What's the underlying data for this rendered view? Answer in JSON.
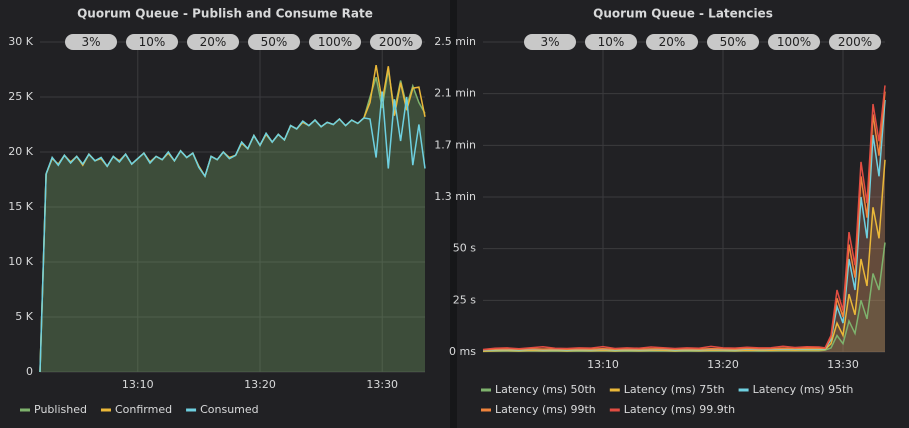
{
  "chart_data": [
    {
      "type": "line",
      "title": "Quorum Queue - Publish and Consume Rate",
      "annotations": [
        "3%",
        "10%",
        "20%",
        "50%",
        "100%",
        "200%"
      ],
      "x": [
        2,
        2.5,
        3,
        3.5,
        4,
        4.5,
        5,
        5.5,
        6,
        6.5,
        7,
        7.5,
        8,
        8.5,
        9,
        9.5,
        10,
        10.5,
        11,
        11.5,
        12,
        12.5,
        13,
        13.5,
        14,
        14.5,
        15,
        15.5,
        16,
        16.5,
        17,
        17.5,
        18,
        18.5,
        19,
        19.5,
        20,
        20.5,
        21,
        21.5,
        22,
        22.5,
        23,
        23.5,
        24,
        24.5,
        25,
        25.5,
        26,
        26.5,
        27,
        27.5,
        28,
        28.5,
        29,
        29.5,
        30,
        30.5,
        31,
        31.5,
        32,
        32.5,
        33,
        33.5
      ],
      "xlim": [
        2,
        33.5
      ],
      "xticks": [
        {
          "value": 10,
          "label": "13:10"
        },
        {
          "value": 20,
          "label": "13:20"
        },
        {
          "value": 30,
          "label": "13:30"
        }
      ],
      "ylim": [
        0,
        30000
      ],
      "yticks": [
        0,
        {
          "value": 5000,
          "label": "5 K"
        },
        {
          "value": 10000,
          "label": "10 K"
        },
        {
          "value": 15000,
          "label": "15 K"
        },
        {
          "value": 20000,
          "label": "20 K"
        },
        {
          "value": 25000,
          "label": "25 K"
        },
        {
          "value": 30000,
          "label": "30 K"
        }
      ],
      "grid": true,
      "series": [
        {
          "name": "Published",
          "color": "#7eb26d",
          "fill": true,
          "values": [
            0,
            18000,
            19500,
            18800,
            19700,
            19000,
            19600,
            18900,
            19800,
            19200,
            19500,
            18700,
            19600,
            19100,
            19800,
            18900,
            19400,
            19900,
            19000,
            19600,
            19300,
            20000,
            19200,
            20100,
            19500,
            19900,
            18600,
            17800,
            19600,
            19300,
            20000,
            19400,
            19700,
            20900,
            20300,
            21500,
            20600,
            21700,
            20900,
            21600,
            21100,
            22400,
            22100,
            22800,
            22400,
            22900,
            22300,
            22700,
            22500,
            23000,
            22400,
            22900,
            22600,
            23100,
            25000,
            26800,
            24000,
            27500,
            23800,
            26500,
            24200,
            26000,
            24500,
            23500
          ]
        },
        {
          "name": "Confirmed",
          "color": "#eab839",
          "fill": false,
          "values": [
            0,
            18000,
            19400,
            18900,
            19700,
            19100,
            19600,
            18800,
            19800,
            19200,
            19400,
            18700,
            19600,
            19200,
            19800,
            18900,
            19400,
            19900,
            19100,
            19600,
            19300,
            19900,
            19200,
            20100,
            19500,
            19900,
            18700,
            17800,
            19600,
            19300,
            20000,
            19500,
            19700,
            20800,
            20300,
            21500,
            20600,
            21600,
            20900,
            21600,
            21100,
            22400,
            22100,
            22700,
            22400,
            22900,
            22300,
            22700,
            22500,
            23000,
            22400,
            22900,
            22600,
            23100,
            24500,
            27900,
            24600,
            27800,
            23300,
            26300,
            23800,
            25800,
            25900,
            23200
          ]
        },
        {
          "name": "Consumed",
          "color": "#6ed0e0",
          "fill": false,
          "values": [
            0,
            18000,
            19500,
            18800,
            19700,
            19000,
            19600,
            18900,
            19800,
            19200,
            19500,
            18700,
            19600,
            19100,
            19800,
            18900,
            19400,
            19900,
            19000,
            19600,
            19300,
            20000,
            19200,
            20100,
            19500,
            19900,
            18600,
            17800,
            19600,
            19300,
            20000,
            19400,
            19700,
            20900,
            20300,
            21500,
            20600,
            21700,
            20900,
            21600,
            21100,
            22400,
            22100,
            22800,
            22400,
            22900,
            22300,
            22700,
            22500,
            23000,
            22400,
            22900,
            22600,
            23100,
            23000,
            19500,
            25500,
            18500,
            24800,
            21000,
            25000,
            18800,
            22500,
            18500
          ]
        }
      ]
    },
    {
      "type": "line",
      "title": "Quorum Queue - Latencies",
      "annotations": [
        "3%",
        "10%",
        "20%",
        "50%",
        "100%",
        "200%"
      ],
      "x": [
        0,
        1,
        2,
        3,
        4,
        5,
        6,
        7,
        8,
        9,
        10,
        11,
        12,
        13,
        14,
        15,
        16,
        17,
        18,
        19,
        20,
        21,
        22,
        23,
        24,
        25,
        26,
        27,
        28,
        28.5,
        29,
        29.5,
        30,
        30.5,
        31,
        31.5,
        32,
        32.5,
        33,
        33.5
      ],
      "xlim": [
        0,
        33.5
      ],
      "xticks": [
        {
          "value": 10,
          "label": "13:10"
        },
        {
          "value": 20,
          "label": "13:20"
        },
        {
          "value": 30,
          "label": "13:30"
        }
      ],
      "ylim": [
        0,
        150000
      ],
      "yticks": [
        {
          "value": 0,
          "label": "0 ms"
        },
        {
          "value": 25000,
          "label": "25 s"
        },
        {
          "value": 50000,
          "label": "50 s"
        },
        {
          "value": 75000,
          "label": "1.3 min"
        },
        {
          "value": 100000,
          "label": "1.7 min"
        },
        {
          "value": 125000,
          "label": "2.1 min"
        },
        {
          "value": 150000,
          "label": "2.5 min"
        }
      ],
      "grid": true,
      "series": [
        {
          "name": "Latency (ms) 50th",
          "color": "#7eb26d",
          "fill": true,
          "values": [
            300,
            450,
            500,
            400,
            550,
            450,
            500,
            400,
            500,
            450,
            550,
            400,
            500,
            450,
            500,
            550,
            400,
            500,
            450,
            550,
            500,
            450,
            600,
            500,
            550,
            650,
            600,
            700,
            650,
            900,
            2000,
            8000,
            4000,
            15000,
            9000,
            25000,
            16000,
            38000,
            30000,
            53000
          ]
        },
        {
          "name": "Latency (ms) 75th",
          "color": "#eab839",
          "fill": true,
          "values": [
            500,
            700,
            800,
            600,
            850,
            700,
            800,
            650,
            800,
            700,
            850,
            650,
            800,
            700,
            800,
            850,
            650,
            800,
            700,
            850,
            800,
            700,
            900,
            800,
            850,
            1000,
            900,
            1100,
            1000,
            1200,
            4000,
            14000,
            8000,
            28000,
            18000,
            45000,
            32000,
            70000,
            55000,
            93000
          ]
        },
        {
          "name": "Latency (ms) 95th",
          "color": "#6ed0e0",
          "fill": true,
          "values": [
            800,
            1100,
            1200,
            1000,
            1300,
            1100,
            1200,
            1000,
            1200,
            1100,
            1300,
            1000,
            1200,
            1100,
            1200,
            1300,
            1000,
            1200,
            1100,
            1300,
            1200,
            1100,
            1400,
            1200,
            1300,
            1500,
            1400,
            1600,
            1500,
            1500,
            6000,
            22000,
            14000,
            45000,
            30000,
            75000,
            55000,
            105000,
            85000,
            122000
          ]
        },
        {
          "name": "Latency (ms) 99th",
          "color": "#ef843c",
          "fill": true,
          "values": [
            1000,
            1400,
            1500,
            1300,
            1600,
            1400,
            1500,
            1300,
            1500,
            1400,
            1600,
            1300,
            1500,
            1400,
            1500,
            1600,
            1300,
            1500,
            1400,
            1600,
            1500,
            1400,
            1700,
            1500,
            1600,
            1800,
            1700,
            1900,
            1800,
            1800,
            7000,
            26000,
            17000,
            52000,
            36000,
            85000,
            65000,
            115000,
            95000,
            126000
          ]
        },
        {
          "name": "Latency (ms) 99.9th",
          "color": "#e24d42",
          "fill": true,
          "values": [
            1200,
            1800,
            2000,
            1600,
            2100,
            2500,
            1800,
            1700,
            2000,
            1900,
            2600,
            1700,
            2000,
            1800,
            2400,
            2100,
            1700,
            2000,
            1800,
            2700,
            2000,
            1900,
            2300,
            2000,
            2100,
            2800,
            2200,
            2500,
            2400,
            2000,
            8000,
            30000,
            20000,
            58000,
            42000,
            92000,
            72000,
            120000,
            102000,
            129000
          ]
        }
      ]
    }
  ]
}
